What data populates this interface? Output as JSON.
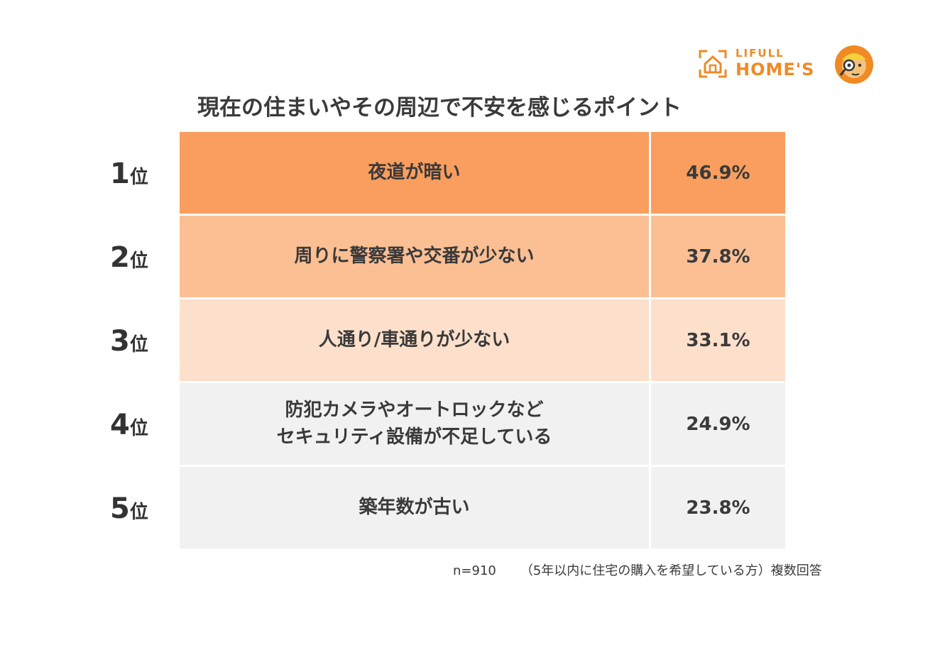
{
  "brand": {
    "top": "LIFULL",
    "main": "HOME'S",
    "color": "#f08a24"
  },
  "chart_data": {
    "type": "table",
    "title": "現在の住まいやその周辺で不安を感じるポイント",
    "rank_suffix": "位",
    "rows": [
      {
        "rank": "1",
        "item": "夜道が暗い",
        "value": 46.9,
        "value_label": "46.9%",
        "color": "#f99e5e"
      },
      {
        "rank": "2",
        "item": "周りに警察署や交番が少ない",
        "value": 37.8,
        "value_label": "37.8%",
        "color": "#fcbf94"
      },
      {
        "rank": "3",
        "item": "人通り/車通りが少ない",
        "value": 33.1,
        "value_label": "33.1%",
        "color": "#fde0cc"
      },
      {
        "rank": "4",
        "item": "防犯カメラやオートロックなど\nセキュリティ設備が不足している",
        "value": 24.9,
        "value_label": "24.9%",
        "color": "#f1f1f1"
      },
      {
        "rank": "5",
        "item": "築年数が古い",
        "value": 23.8,
        "value_label": "23.8%",
        "color": "#f1f1f1"
      }
    ]
  },
  "footnote": {
    "sample": "n=910",
    "note": "（5年以内に住宅の購入を希望している方）複数回答"
  }
}
